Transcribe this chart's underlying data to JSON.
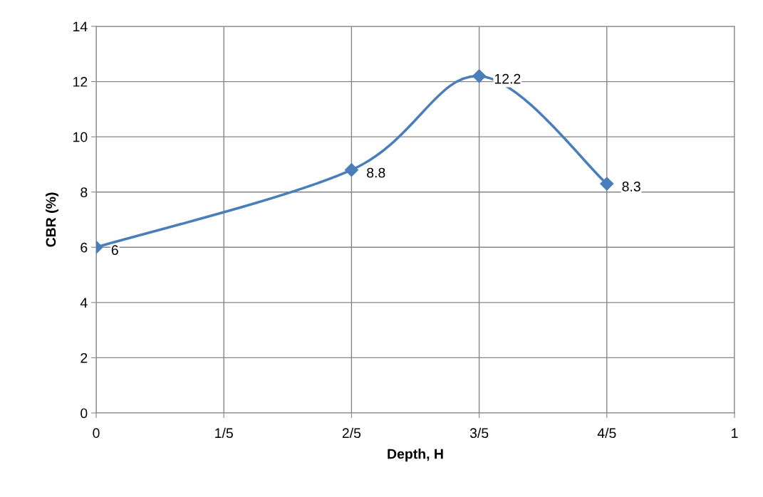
{
  "chart_data": {
    "type": "line",
    "xlabel": "Depth, H",
    "ylabel": "CBR (%)",
    "x": [
      0,
      0.4,
      0.6,
      0.8
    ],
    "series": [
      {
        "color": "#4a7ebb",
        "values": [
          6,
          8.8,
          12.2,
          8.3
        ]
      }
    ],
    "xlim": [
      0,
      1
    ],
    "xticks": [
      0,
      {
        "value": 0.2,
        "label": "1/5"
      },
      {
        "value": 0.4,
        "label": "2/5"
      },
      {
        "value": 0.6,
        "label": "3/5"
      },
      {
        "value": 0.8,
        "label": "4/5"
      },
      1
    ],
    "ylim": [
      0,
      14
    ],
    "yticks": [
      0,
      2,
      4,
      6,
      8,
      10,
      12,
      14
    ],
    "grid": true,
    "marker": "diamond",
    "line_style": "solid",
    "data_labels": true
  }
}
